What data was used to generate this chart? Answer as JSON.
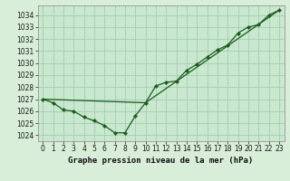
{
  "xlabel": "Graphe pression niveau de la mer (hPa)",
  "background_color": "#c8e8d0",
  "grid_color": "#a0c8a8",
  "line_color1": "#1a5c1a",
  "line_color2": "#1a5c1a",
  "ylim": [
    1023.5,
    1034.8
  ],
  "xlim": [
    -0.5,
    23.5
  ],
  "yticks": [
    1024,
    1025,
    1026,
    1027,
    1028,
    1029,
    1030,
    1031,
    1032,
    1033,
    1034
  ],
  "xticks": [
    0,
    1,
    2,
    3,
    4,
    5,
    6,
    7,
    8,
    9,
    10,
    11,
    12,
    13,
    14,
    15,
    16,
    17,
    18,
    19,
    20,
    21,
    22,
    23
  ],
  "series1_x": [
    0,
    1,
    2,
    3,
    4,
    5,
    6,
    7,
    8,
    9,
    10,
    11,
    12,
    13,
    14,
    15,
    16,
    17,
    18,
    19,
    20,
    21,
    22,
    23
  ],
  "series1_y": [
    1027.0,
    1026.7,
    1026.1,
    1026.0,
    1025.5,
    1025.2,
    1024.8,
    1024.2,
    1024.2,
    1025.6,
    1026.7,
    1028.1,
    1028.4,
    1028.5,
    1029.4,
    1029.9,
    1030.5,
    1031.1,
    1031.5,
    1032.5,
    1033.0,
    1033.2,
    1034.0,
    1034.4
  ],
  "series2_x": [
    0,
    10,
    23
  ],
  "series2_y": [
    1027.0,
    1026.7,
    1034.4
  ],
  "markersize": 2.2,
  "linewidth": 0.9,
  "tick_fontsize": 5.5,
  "label_fontsize": 6.5,
  "outer_bg": "#d8eed8"
}
